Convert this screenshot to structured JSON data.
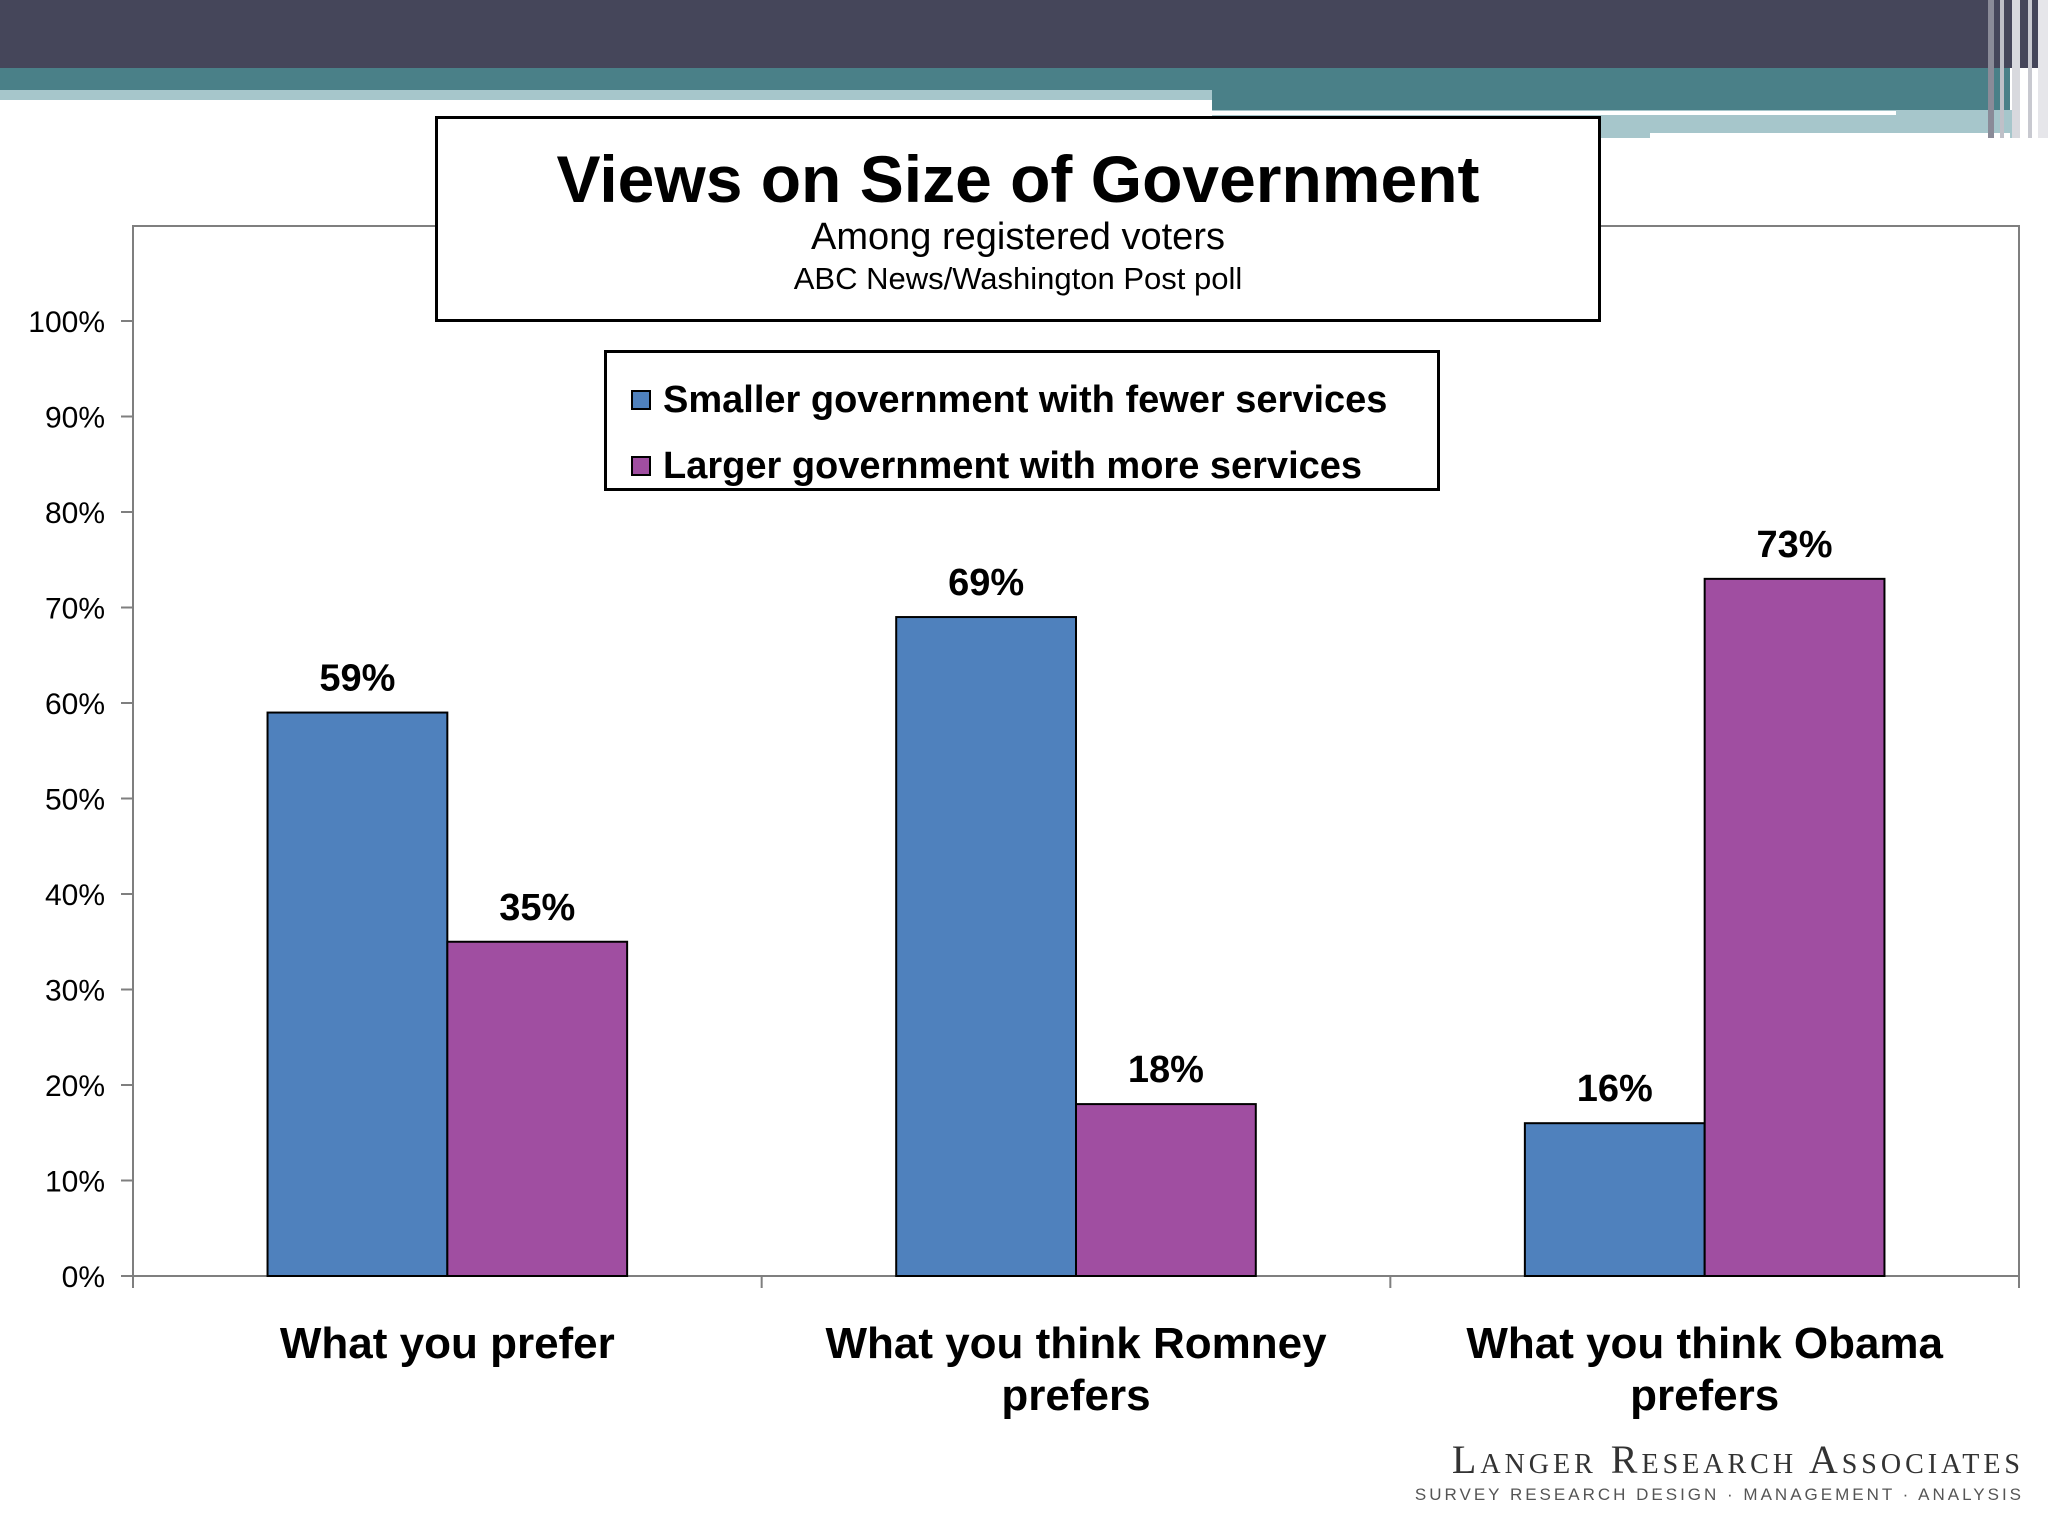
{
  "chart_data": {
    "type": "bar",
    "title": "Views on Size of Government",
    "subtitle": "Among registered voters",
    "source": "ABC News/Washington Post poll",
    "categories": [
      "What you prefer",
      "What you think Romney prefers",
      "What you think Obama prefers"
    ],
    "category_lines": [
      [
        "What you prefer"
      ],
      [
        "What you think Romney",
        "prefers"
      ],
      [
        "What you think Obama",
        "prefers"
      ]
    ],
    "series": [
      {
        "name": "Smaller government with fewer services",
        "values": [
          59,
          69,
          16
        ],
        "color": "#4F81BD"
      },
      {
        "name": "Larger government with more services",
        "values": [
          35,
          18,
          73
        ],
        "color": "#A04EA1"
      }
    ],
    "data_labels": [
      [
        "59%",
        "69%",
        "16%"
      ],
      [
        "35%",
        "18%",
        "73%"
      ]
    ],
    "ylim": [
      0,
      110
    ],
    "yticks": [
      0,
      10,
      20,
      30,
      40,
      50,
      60,
      70,
      80,
      90,
      100
    ],
    "ytick_labels": [
      "0%",
      "10%",
      "20%",
      "30%",
      "40%",
      "50%",
      "60%",
      "70%",
      "80%",
      "90%",
      "100%"
    ],
    "xlabel": "",
    "ylabel": "",
    "grid": false,
    "legend_position": "top-center"
  },
  "branding": {
    "name": "Langer Research Associates",
    "tagline": "SURVEY RESEARCH DESIGN · MANAGEMENT · ANALYSIS"
  },
  "colors": {
    "header_dark": "#45465A",
    "header_teal": "#4A8088",
    "header_light": "#A6C6CB"
  }
}
